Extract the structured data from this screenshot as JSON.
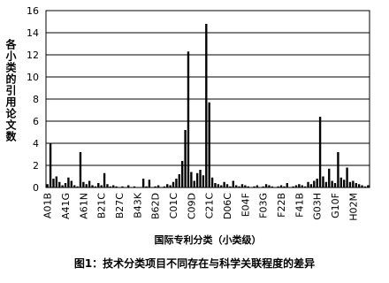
{
  "chart_data": {
    "type": "bar",
    "caption": "图1：技术分类项目不同存在与科学关联程度的差异",
    "x_label": "国际专利分类（小类级）",
    "y_label": "各小类的引用论文数",
    "color": "#000000",
    "grid": true,
    "ylim": [
      0,
      16
    ],
    "yticks": [
      0,
      2,
      4,
      6,
      8,
      10,
      12,
      14,
      16
    ],
    "categories": [
      "A01B",
      null,
      null,
      null,
      null,
      null,
      "A41G",
      null,
      null,
      null,
      null,
      null,
      "A61N",
      null,
      null,
      null,
      null,
      null,
      "B21C",
      null,
      null,
      null,
      null,
      null,
      "B27C",
      null,
      null,
      null,
      null,
      null,
      "B43K",
      null,
      null,
      null,
      null,
      null,
      "B62D",
      null,
      null,
      null,
      null,
      null,
      "C01C",
      null,
      null,
      null,
      null,
      null,
      "C09D",
      null,
      null,
      null,
      null,
      null,
      "C21C",
      null,
      null,
      null,
      null,
      null,
      "D06C",
      null,
      null,
      null,
      null,
      null,
      "E04F",
      null,
      null,
      null,
      null,
      null,
      "F03G",
      null,
      null,
      null,
      null,
      null,
      "F22B",
      null,
      null,
      null,
      null,
      null,
      "F41B",
      null,
      null,
      null,
      null,
      null,
      "G03H",
      null,
      null,
      null,
      null,
      null,
      "G10F",
      null,
      null,
      null,
      null,
      null,
      "H02M",
      null,
      null,
      null,
      null,
      null
    ],
    "values": [
      0.3,
      4,
      0.8,
      1,
      0.5,
      0.2,
      0.4,
      0.9,
      0.6,
      0.2,
      0.1,
      3.2,
      0.5,
      0.3,
      0.6,
      0.2,
      0.1,
      0.4,
      0.2,
      1.3,
      0.3,
      0.1,
      0.2,
      0.1,
      0,
      0.1,
      0,
      0.2,
      0,
      0.1,
      0,
      0,
      0.8,
      0.1,
      0.7,
      0,
      0.1,
      0.2,
      0,
      0.1,
      0.3,
      0.2,
      0.5,
      0.8,
      1.2,
      2.4,
      5.2,
      12.3,
      1.4,
      0.6,
      1.3,
      1.6,
      1.1,
      14.8,
      7.7,
      0.9,
      0.4,
      0.3,
      0.2,
      0.5,
      0.3,
      0.1,
      0.6,
      0.2,
      0.1,
      0.3,
      0.2,
      0.1,
      0,
      0.1,
      0.2,
      0,
      0.1,
      0.3,
      0.2,
      0.1,
      0,
      0.1,
      0.2,
      0.1,
      0.4,
      0,
      0.1,
      0.2,
      0.3,
      0.2,
      0.1,
      0.5,
      0.3,
      0.6,
      0.8,
      6.4,
      1,
      0.5,
      1.7,
      0.6,
      0.4,
      3.2,
      0.9,
      0.7,
      1.8,
      0.5,
      0.6,
      0.4,
      0.3,
      0.2,
      0.1,
      0.2
    ]
  }
}
